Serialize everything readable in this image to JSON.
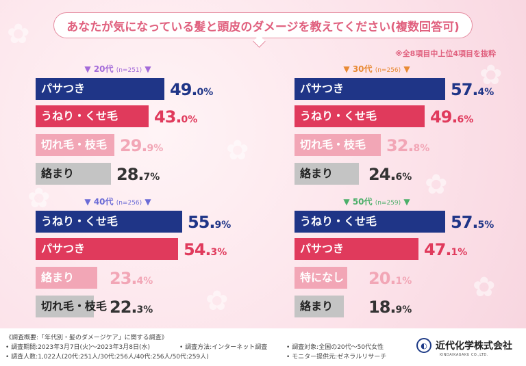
{
  "header": {
    "title": "あなたが気になっている髪と頭皮のダメージを教えてください(複数回答可)",
    "note": "※全8項目中上位4項目を抜粋"
  },
  "colors": {
    "rank1": "#1f3587",
    "rank2": "#e03a5c",
    "rank3": "#f2a6b6",
    "rank4": "#c4c4c4",
    "head20": "#a36ad9",
    "head30": "#e88a35",
    "head40": "#6b6bd6",
    "head50": "#4caf6a"
  },
  "chart_data": [
    {
      "type": "bar",
      "group": "20代",
      "n": "(n=251)",
      "categories": [
        "パサつき",
        "うねり・くせ毛",
        "切れ毛・枝毛",
        "絡まり"
      ],
      "values": [
        49.0,
        43.0,
        29.9,
        28.7
      ],
      "value_labels": [
        {
          "int": "49.",
          "dec": "0%"
        },
        {
          "int": "43.",
          "dec": "0%"
        },
        {
          "int": "29.",
          "dec": "9%"
        },
        {
          "int": "28.",
          "dec": "7%"
        }
      ],
      "xlim": [
        0,
        60
      ]
    },
    {
      "type": "bar",
      "group": "30代",
      "n": "(n=256)",
      "categories": [
        "パサつき",
        "うねり・くせ毛",
        "切れ毛・枝毛",
        "絡まり"
      ],
      "values": [
        57.4,
        49.6,
        32.8,
        24.6
      ],
      "value_labels": [
        {
          "int": "57.",
          "dec": "4%"
        },
        {
          "int": "49.",
          "dec": "6%"
        },
        {
          "int": "32.",
          "dec": "8%"
        },
        {
          "int": "24.",
          "dec": "6%"
        }
      ],
      "xlim": [
        0,
        60
      ]
    },
    {
      "type": "bar",
      "group": "40代",
      "n": "(n=256)",
      "categories": [
        "うねり・くせ毛",
        "パサつき",
        "絡まり",
        "切れ毛・枝毛"
      ],
      "values": [
        55.9,
        54.3,
        23.4,
        22.3
      ],
      "value_labels": [
        {
          "int": "55.",
          "dec": "9%"
        },
        {
          "int": "54.",
          "dec": "3%"
        },
        {
          "int": "23.",
          "dec": "4%"
        },
        {
          "int": "22.",
          "dec": "3%"
        }
      ],
      "xlim": [
        0,
        60
      ]
    },
    {
      "type": "bar",
      "group": "50代",
      "n": "(n=259)",
      "categories": [
        "うねり・くせ毛",
        "パサつき",
        "特になし",
        "絡まり"
      ],
      "values": [
        57.5,
        47.1,
        20.1,
        18.9
      ],
      "value_labels": [
        {
          "int": "57.",
          "dec": "5%"
        },
        {
          "int": "47.",
          "dec": "1%"
        },
        {
          "int": "20.",
          "dec": "1%"
        },
        {
          "int": "18.",
          "dec": "9%"
        }
      ],
      "xlim": [
        0,
        60
      ]
    }
  ],
  "footer": {
    "line1": "《調査概要:「年代別・髪のダメージケア」に関する調査》",
    "line2a": "• 調査期間:2023年3月7日(火)〜2023年3月8日(水)",
    "line2b": "• 調査方法:インターネット調査",
    "line2c": "• 調査対象:全国の20代〜50代女性",
    "line3a": "• 調査人数:1,022人(20代:251人/30代:256人/40代:256人/50代:259人)",
    "line3b": "• モニター提供元:ゼネラルリサーチ",
    "logo": "近代化学株式会社",
    "logo_sub": "KINDAIKAGAKU CO.,LTD."
  }
}
